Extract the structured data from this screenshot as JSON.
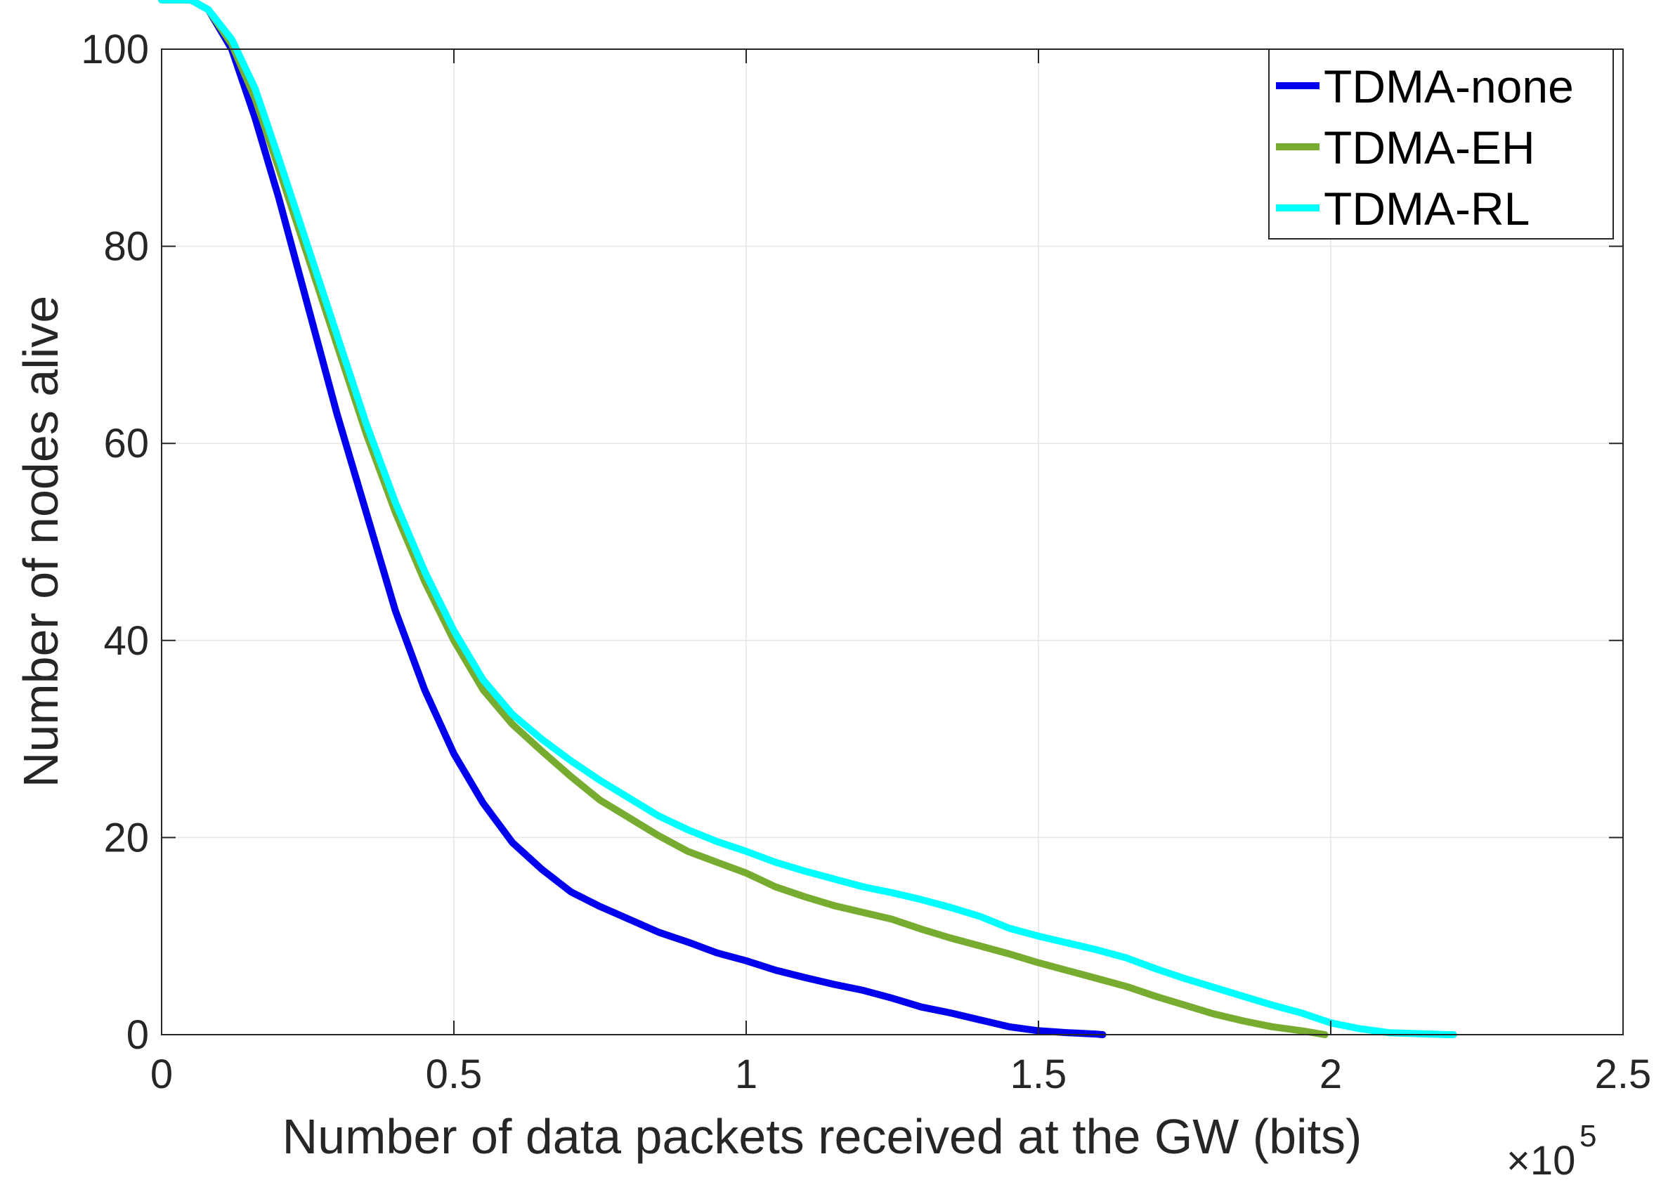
{
  "chart_data": {
    "type": "line",
    "title": "",
    "xlabel": "Number of data packets received at the GW (bits)",
    "ylabel": "Number of nodes alive",
    "xlim": [
      0,
      2.5
    ],
    "ylim": [
      0,
      100
    ],
    "x_scale_note": {
      "prefix": "×10",
      "exponent": "5"
    },
    "x_ticks": [
      0,
      0.5,
      1,
      1.5,
      2,
      2.5
    ],
    "x_tick_labels": [
      "0",
      "0.5",
      "1",
      "1.5",
      "2",
      "2.5"
    ],
    "y_ticks": [
      0,
      20,
      40,
      60,
      80,
      100
    ],
    "y_tick_labels": [
      "0",
      "20",
      "40",
      "60",
      "80",
      "100"
    ],
    "grid": true,
    "legend_position": "top-right",
    "series": [
      {
        "name": "TDMA-none",
        "color": "#0000ee",
        "x": [
          0,
          0.05,
          0.08,
          0.12,
          0.16,
          0.2,
          0.25,
          0.3,
          0.35,
          0.4,
          0.45,
          0.5,
          0.55,
          0.6,
          0.65,
          0.7,
          0.75,
          0.8,
          0.85,
          0.9,
          0.95,
          1.0,
          1.05,
          1.1,
          1.15,
          1.2,
          1.25,
          1.3,
          1.35,
          1.4,
          1.45,
          1.5,
          1.55,
          1.6,
          1.61
        ],
        "y": [
          100,
          100,
          99,
          95,
          88,
          80,
          69,
          58,
          48,
          38,
          30,
          23.5,
          18.5,
          14.5,
          11.8,
          9.5,
          8.0,
          6.7,
          5.4,
          4.4,
          3.3,
          2.5,
          1.55,
          0.8,
          0.1,
          -0.5,
          -1.3,
          -2.2,
          -2.8,
          -3.5,
          -4.2,
          -4.6,
          -4.8,
          -4.95,
          -5.0
        ]
      },
      {
        "name": "TDMA-EH",
        "color": "#77ac30",
        "x": [
          0,
          0.05,
          0.08,
          0.12,
          0.16,
          0.2,
          0.25,
          0.3,
          0.35,
          0.4,
          0.45,
          0.5,
          0.55,
          0.6,
          0.65,
          0.7,
          0.75,
          0.8,
          0.85,
          0.9,
          0.95,
          1.0,
          1.05,
          1.1,
          1.15,
          1.2,
          1.25,
          1.3,
          1.35,
          1.4,
          1.45,
          1.5,
          1.55,
          1.6,
          1.65,
          1.7,
          1.75,
          1.8,
          1.85,
          1.9,
          1.95,
          1.99
        ],
        "y": [
          100,
          100,
          99,
          95.5,
          90,
          83,
          74,
          65,
          56,
          48,
          41,
          35,
          30,
          26.5,
          23.8,
          21.2,
          18.8,
          17.0,
          15.2,
          13.6,
          12.5,
          11.4,
          10.0,
          9.0,
          8.1,
          7.4,
          6.7,
          5.7,
          4.8,
          4.0,
          3.2,
          2.3,
          1.5,
          0.7,
          -0.1,
          -1.1,
          -2.0,
          -2.9,
          -3.6,
          -4.2,
          -4.6,
          -5.0
        ]
      },
      {
        "name": "TDMA-RL",
        "color": "#00ffff",
        "x": [
          0,
          0.05,
          0.08,
          0.12,
          0.16,
          0.2,
          0.25,
          0.3,
          0.35,
          0.4,
          0.45,
          0.5,
          0.55,
          0.6,
          0.65,
          0.7,
          0.75,
          0.8,
          0.85,
          0.9,
          0.95,
          1.0,
          1.05,
          1.1,
          1.15,
          1.2,
          1.25,
          1.3,
          1.35,
          1.4,
          1.45,
          1.5,
          1.55,
          1.6,
          1.65,
          1.7,
          1.75,
          1.8,
          1.85,
          1.9,
          1.95,
          2.0,
          2.05,
          2.1,
          2.15,
          2.2,
          2.21
        ],
        "y": [
          100,
          100,
          99,
          96,
          91,
          84,
          75,
          66,
          57,
          49,
          42,
          36,
          31,
          27.5,
          25,
          22.8,
          20.8,
          19.0,
          17.2,
          15.8,
          14.6,
          13.6,
          12.5,
          11.6,
          10.8,
          10.0,
          9.4,
          8.7,
          7.9,
          7.0,
          5.8,
          5.0,
          4.3,
          3.6,
          2.8,
          1.7,
          0.7,
          -0.2,
          -1.1,
          -2.0,
          -2.8,
          -3.8,
          -4.4,
          -4.8,
          -4.9,
          -5.0,
          -5.0
        ]
      }
    ]
  }
}
